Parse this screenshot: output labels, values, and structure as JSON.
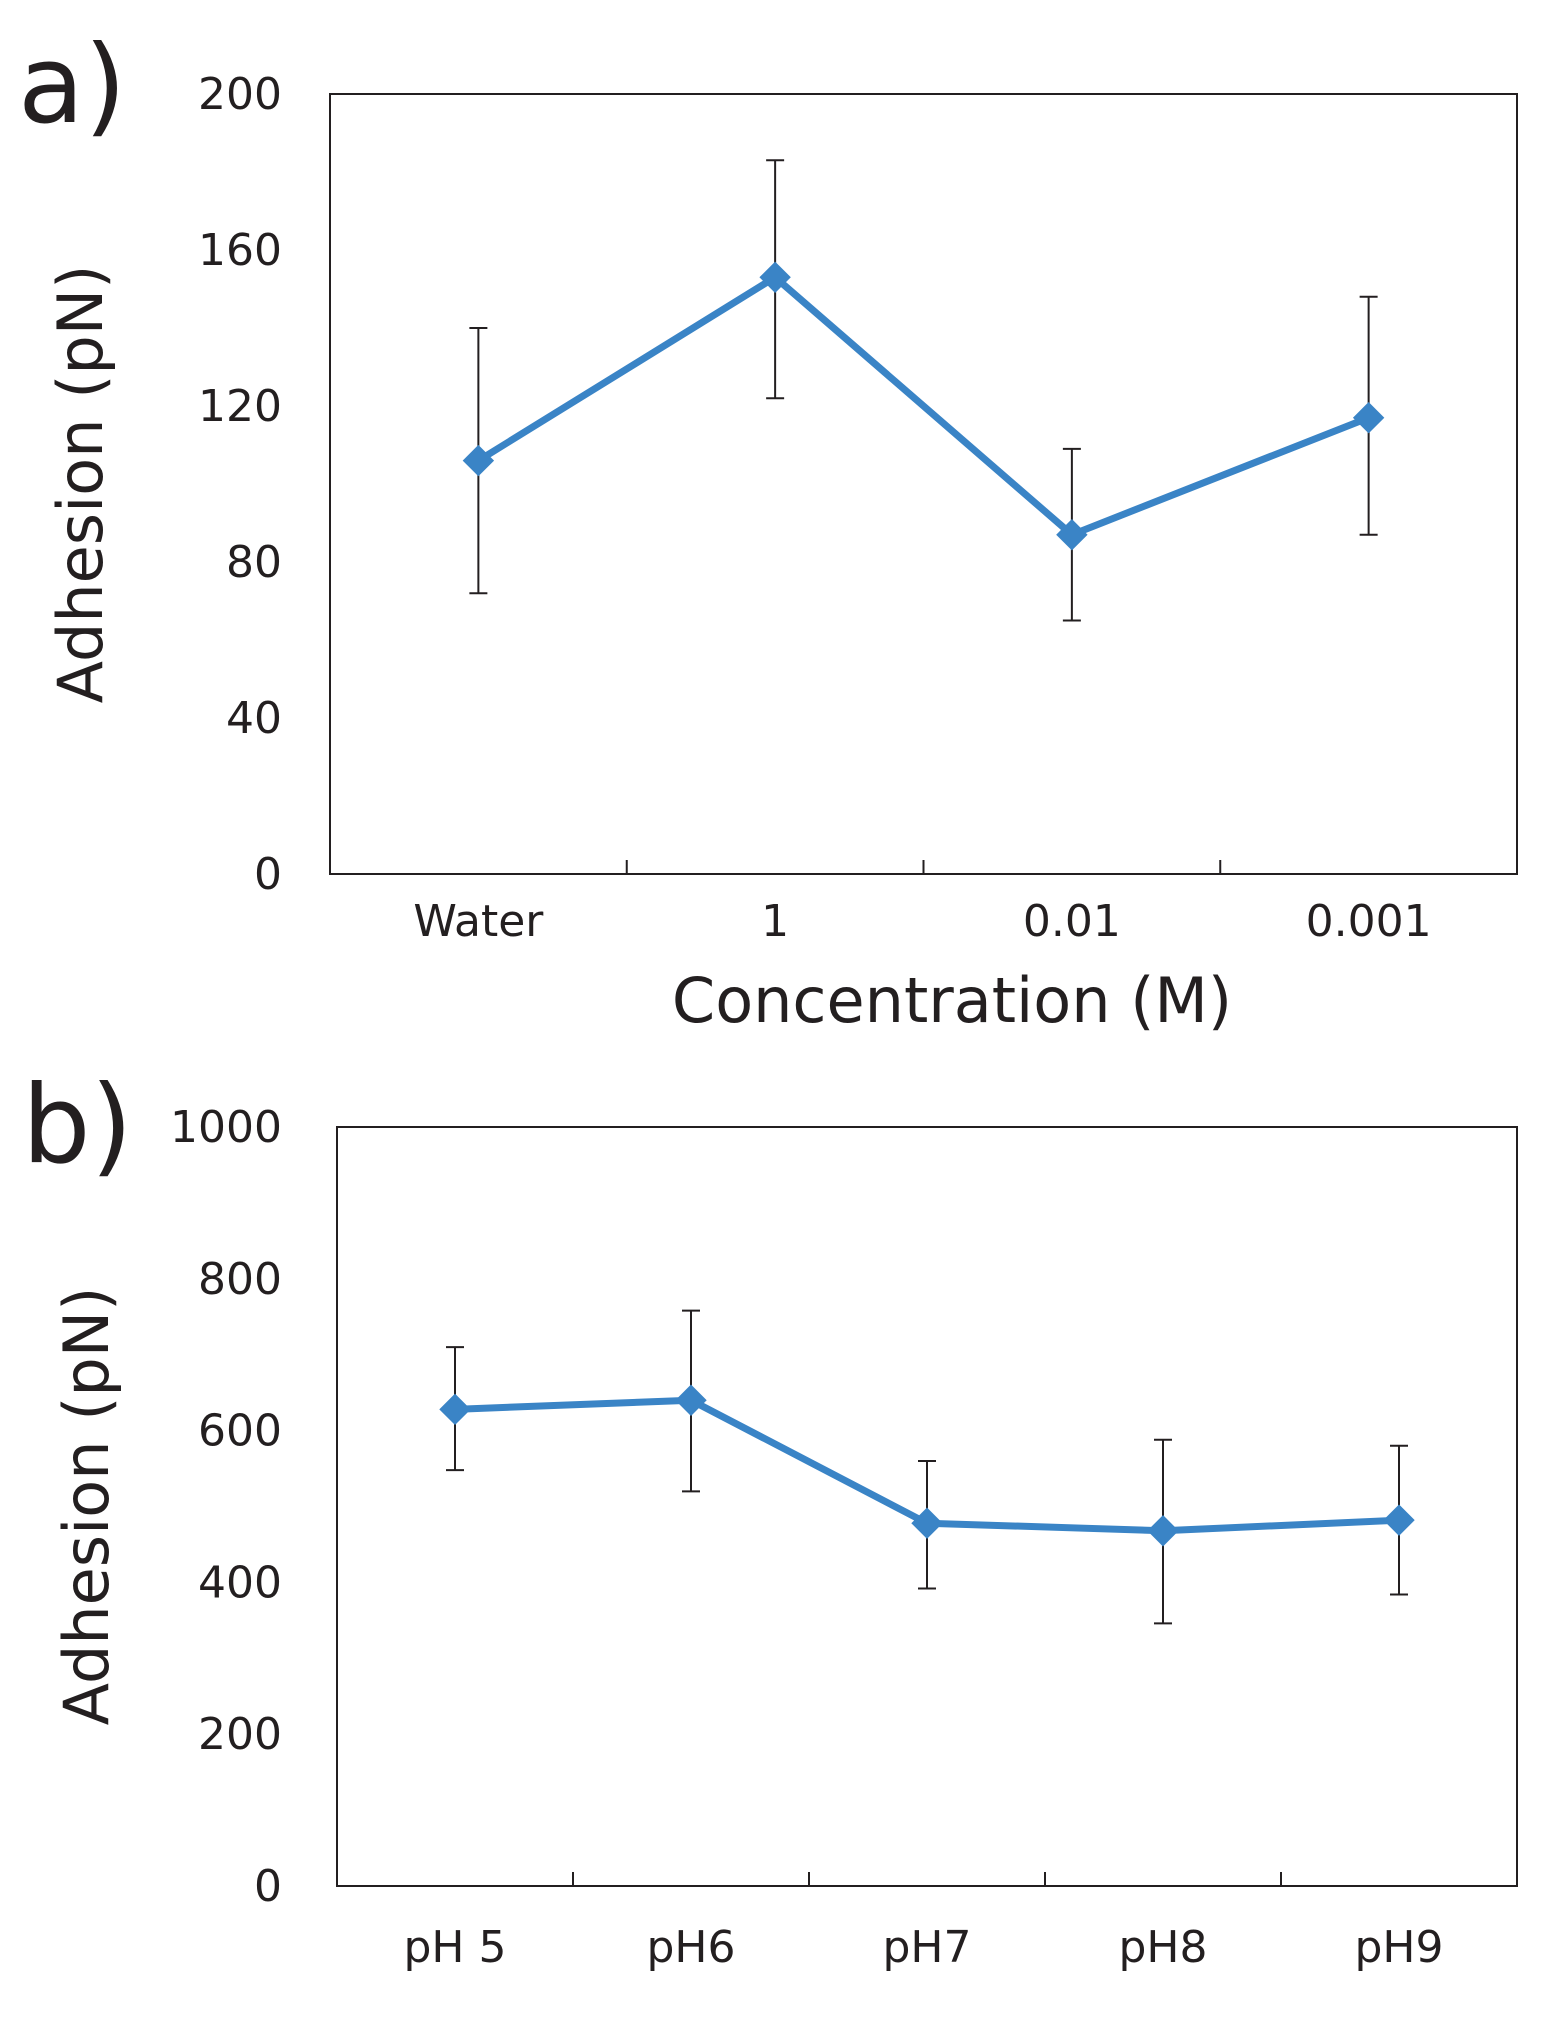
{
  "chart_data": [
    {
      "panel": "a)",
      "type": "line",
      "title": "",
      "xlabel": "Concentration (M)",
      "ylabel": "Adhesion (pN)",
      "categories": [
        "Water",
        "1",
        "0.01",
        "0.001"
      ],
      "ylim": [
        0,
        200
      ],
      "yticks": [
        0,
        40,
        80,
        120,
        160,
        200
      ],
      "series": [
        {
          "name": "Adhesion",
          "color": "#3a84c6",
          "values": [
            106,
            153,
            87,
            117
          ],
          "err_low": [
            72,
            122,
            65,
            87
          ],
          "err_high": [
            140,
            183,
            109,
            148
          ]
        }
      ],
      "grid": false,
      "legend": "none"
    },
    {
      "panel": "b)",
      "type": "line",
      "title": "",
      "xlabel": "",
      "ylabel": "Adhesion (pN)",
      "categories": [
        "pH 5",
        "pH6",
        "pH7",
        "pH8",
        "pH9"
      ],
      "ylim": [
        0,
        1000
      ],
      "yticks": [
        0,
        200,
        400,
        600,
        800,
        1000
      ],
      "series": [
        {
          "name": "Adhesion",
          "color": "#3a84c6",
          "values": [
            628,
            640,
            478,
            468,
            482
          ],
          "err_low": [
            548,
            520,
            392,
            346,
            384
          ],
          "err_high": [
            710,
            758,
            560,
            588,
            580
          ]
        }
      ],
      "grid": false,
      "legend": "none"
    }
  ]
}
